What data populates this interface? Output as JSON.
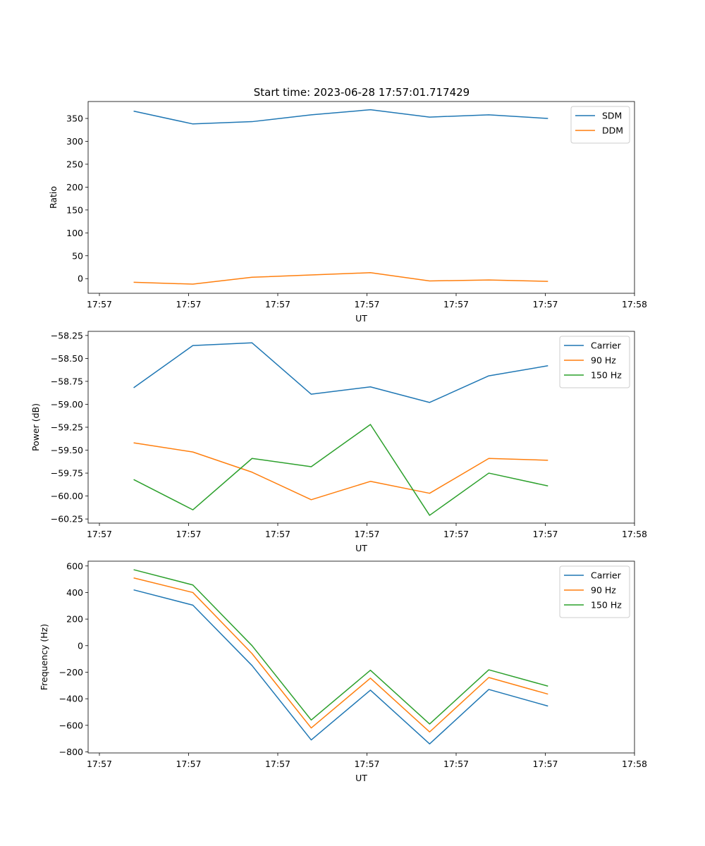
{
  "figure": {
    "title": "Start time: 2023-06-28 17:57:01.717429"
  },
  "chart_data": [
    {
      "type": "line",
      "title": "Start time: 2023-06-28 17:57:01.717429",
      "xlabel": "UT",
      "ylabel": "Ratio",
      "x_ticks": [
        "17:57",
        "17:57",
        "17:57",
        "17:57",
        "17:57",
        "17:57",
        "17:58"
      ],
      "xlim": [
        0,
        6
      ],
      "x": [
        0.5,
        1.15,
        1.8,
        2.45,
        3.1,
        3.75,
        4.4,
        5.05
      ],
      "ylim": [
        -32,
        387
      ],
      "y_ticks": [
        0,
        50,
        100,
        150,
        200,
        250,
        300,
        350
      ],
      "legend_position": "upper right",
      "series": [
        {
          "name": "SDM",
          "color": "#1f77b4",
          "values": [
            366,
            338,
            343,
            358,
            369,
            353,
            358,
            350
          ]
        },
        {
          "name": "DDM",
          "color": "#ff7f0e",
          "values": [
            -8,
            -12,
            3,
            8,
            13,
            -5,
            -3,
            -6
          ]
        }
      ]
    },
    {
      "type": "line",
      "xlabel": "UT",
      "ylabel": "Power (dB)",
      "x_ticks": [
        "17:57",
        "17:57",
        "17:57",
        "17:57",
        "17:57",
        "17:57",
        "17:58"
      ],
      "xlim": [
        0,
        6
      ],
      "x": [
        0.5,
        1.15,
        1.8,
        2.45,
        3.1,
        3.75,
        4.4,
        5.05
      ],
      "ylim": [
        -60.295,
        -58.205
      ],
      "y_ticks": [
        -60.25,
        -60.0,
        -59.75,
        -59.5,
        -59.25,
        -59.0,
        -58.75,
        -58.5,
        -58.25
      ],
      "y_tick_labels": [
        "−60.25",
        "−60.00",
        "−59.75",
        "−59.50",
        "−59.25",
        "−59.00",
        "−58.75",
        "−58.50",
        "−58.25"
      ],
      "legend_position": "upper right",
      "series": [
        {
          "name": "Carrier",
          "color": "#1f77b4",
          "values": [
            -58.82,
            -58.36,
            -58.33,
            -58.89,
            -58.81,
            -58.98,
            -58.69,
            -58.58
          ]
        },
        {
          "name": "90 Hz",
          "color": "#ff7f0e",
          "values": [
            -59.42,
            -59.52,
            -59.74,
            -60.04,
            -59.84,
            -59.97,
            -59.59,
            -59.61
          ]
        },
        {
          "name": "150 Hz",
          "color": "#2ca02c",
          "values": [
            -59.82,
            -60.15,
            -59.59,
            -59.68,
            -59.22,
            -60.21,
            -59.75,
            -59.89
          ]
        }
      ]
    },
    {
      "type": "line",
      "xlabel": "UT",
      "ylabel": "Frequency (Hz)",
      "x_ticks": [
        "17:57",
        "17:57",
        "17:57",
        "17:57",
        "17:57",
        "17:57",
        "17:58"
      ],
      "xlim": [
        0,
        6
      ],
      "x": [
        0.5,
        1.15,
        1.8,
        2.45,
        3.1,
        3.75,
        4.4,
        5.05
      ],
      "ylim": [
        -808,
        636
      ],
      "y_ticks": [
        -800,
        -600,
        -400,
        -200,
        0,
        200,
        400,
        600
      ],
      "y_tick_labels": [
        "−800",
        "−600",
        "−400",
        "−200",
        "0",
        "200",
        "400",
        "600"
      ],
      "legend_position": "upper right",
      "series": [
        {
          "name": "Carrier",
          "color": "#1f77b4",
          "values": [
            420,
            305,
            -150,
            -710,
            -335,
            -740,
            -330,
            -455
          ]
        },
        {
          "name": "90 Hz",
          "color": "#ff7f0e",
          "values": [
            510,
            400,
            -60,
            -620,
            -245,
            -650,
            -240,
            -365
          ]
        },
        {
          "name": "150 Hz",
          "color": "#2ca02c",
          "values": [
            572,
            457,
            0,
            -560,
            -185,
            -590,
            -182,
            -305
          ]
        }
      ]
    }
  ]
}
